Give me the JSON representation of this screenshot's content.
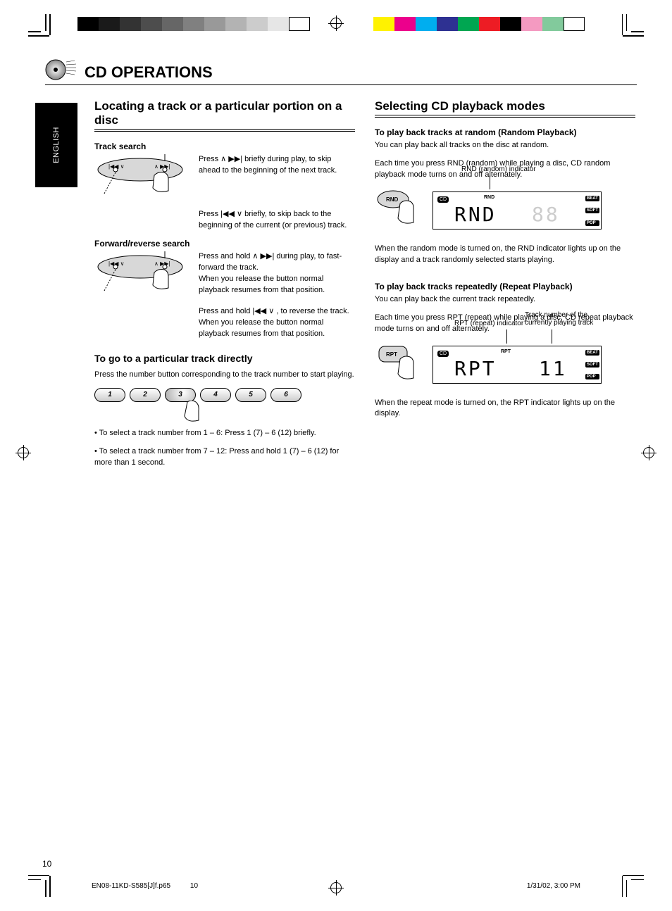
{
  "print": {
    "gray_swatches": [
      "#000000",
      "#1a1a1a",
      "#333333",
      "#4d4d4d",
      "#666666",
      "#808080",
      "#999999",
      "#b3b3b3",
      "#cccccc",
      "#e6e6e6",
      "#ffffff"
    ],
    "color_swatches": [
      "#fff200",
      "#ec008c",
      "#00aeef",
      "#2e3192",
      "#00a651",
      "#ed1c24",
      "#000000",
      "#f49ac1",
      "#82ca9c",
      "#ffffff"
    ]
  },
  "header": {
    "title": "CD OPERATIONS"
  },
  "side_tab": "ENGLISH",
  "left": {
    "h2": "Locating a track or a particular portion on a disc",
    "track_search_label": "Track search",
    "a_fwd": "Press ∧ ▶▶| briefly during play, to skip ahead to the beginning of the next track.",
    "a_back": "Press |◀◀ ∨ briefly, to skip back to the beginning of the current (or previous) track.",
    "fwd_rev_label": "Forward/reverse search",
    "b_fwd_1": "Press and hold ∧ ▶▶| during play, to fast-forward the track.",
    "b_fwd_2": "When you release the button normal playback resumes from that position.",
    "b_back_1": "Press and hold |◀◀ ∨ , to reverse the track.",
    "b_back_2": "When you release the button normal playback resumes from that position.",
    "h3": "To go to a particular track directly",
    "direct_text": "Press the number button corresponding to the track number to start playing.",
    "preset_labels": [
      "1",
      "2",
      "3",
      "4",
      "5",
      "6"
    ],
    "direct_7_12": "• To select a track number from 1 – 6: Press 1 (7) – 6 (12) briefly.",
    "direct_1_6": "• To select a track number from 7 – 12: Press and hold 1 (7) – 6 (12) for more than 1 second."
  },
  "right": {
    "h2": "Selecting CD playback modes",
    "rnd_h": "To play back tracks at random (Random Playback)",
    "rnd_p1": "You can play back all tracks on the disc at random.",
    "rnd_callout": "RND (random) indicator",
    "rnd_step": "Each time you press RND (random) while playing a disc, CD random playback mode turns on and off alternately.",
    "lcd1": {
      "main": "RND",
      "digits": "88",
      "ind_pos": "RND"
    },
    "rnd_ind_note": "When the random mode is turned on, the RND indicator lights up on the display and a track randomly selected starts playing.",
    "rpt_h": "To play back tracks repeatedly (Repeat Playback)",
    "rpt_p1": "You can play back the current track repeatedly.",
    "rpt_callout_l": "RPT (repeat) indicator",
    "rpt_callout_r": "Track number of the currently playing track",
    "rpt_step": "Each time you press RPT (repeat) while playing a disc, CD repeat playback mode turns on and off alternately.",
    "lcd2": {
      "main": "RPT",
      "digits": "11",
      "ind_pos": "RPT"
    },
    "rpt_ind_note": "When the repeat mode is turned on, the RPT indicator lights up on the display.",
    "eq_labels": [
      "BEAT",
      "SOFT",
      "POP"
    ],
    "btn_labels": {
      "rnd": "RND",
      "rpt": "RPT"
    }
  },
  "page_number": "10",
  "footer": {
    "file": "EN08-11KD-S585[J]f.p65",
    "date": "1/31/02, 3:00 PM",
    "page": "10"
  }
}
